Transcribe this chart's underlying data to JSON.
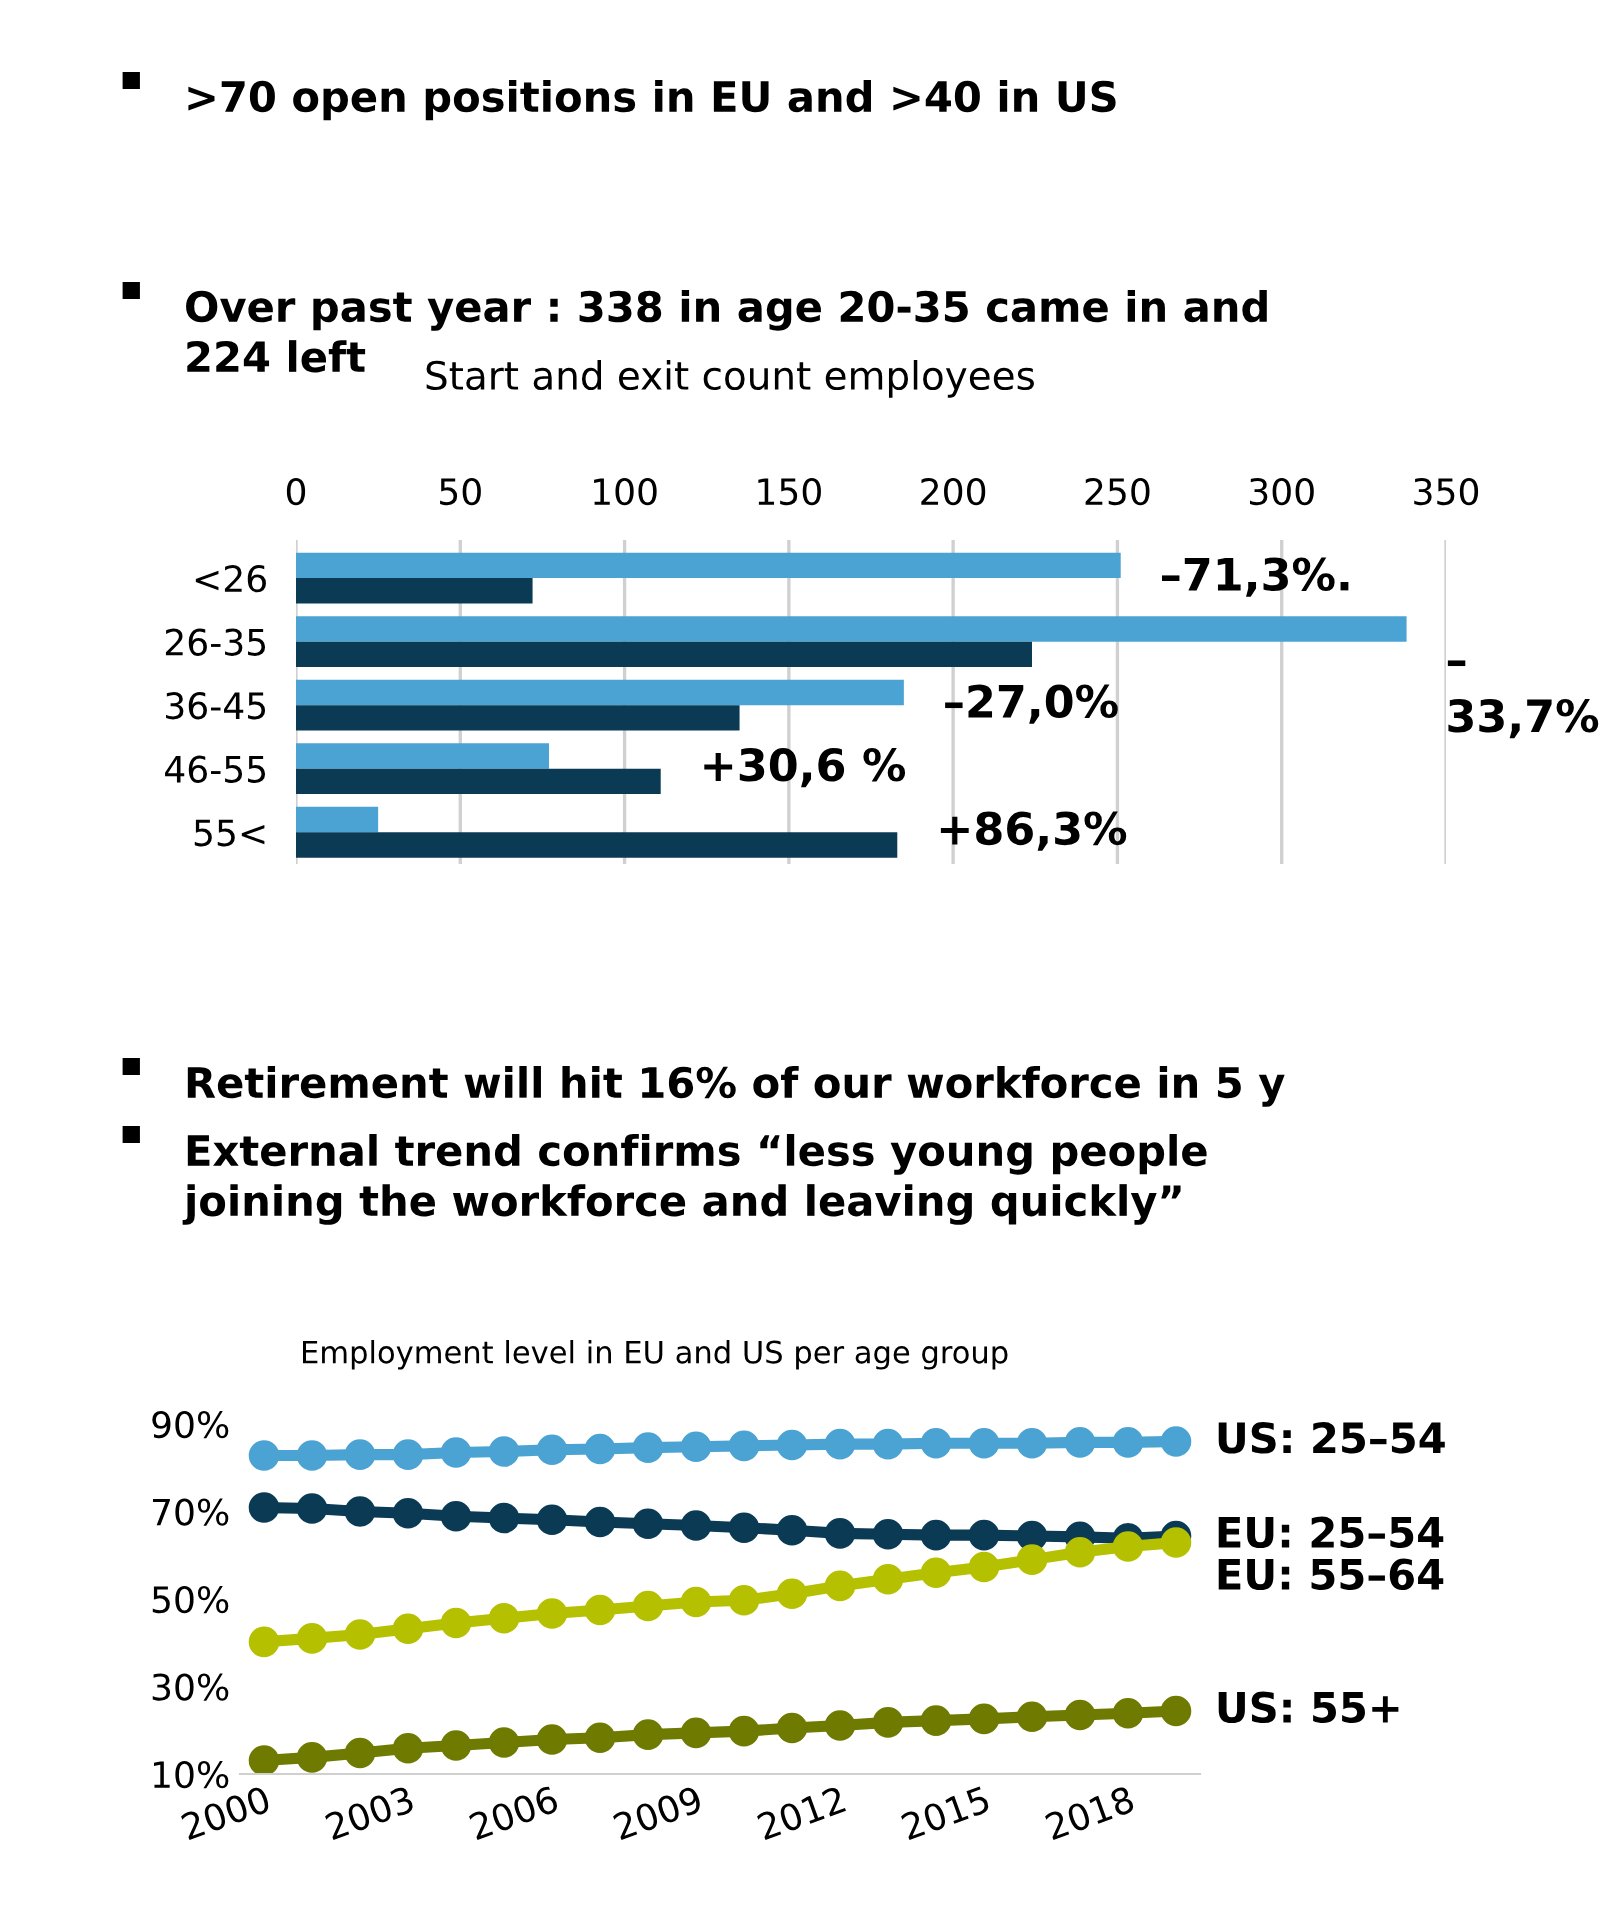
{
  "chart_data": [
    {
      "type": "bar",
      "orientation": "horizontal",
      "title": "Start and exit count employees",
      "categories": [
        "<26",
        "26-35",
        "36-45",
        "46-55",
        "55<"
      ],
      "series": [
        {
          "color": "#4ba3d3",
          "values": [
            251,
            338,
            185,
            77,
            25
          ]
        },
        {
          "color": "#0b3a55",
          "values": [
            72,
            224,
            135,
            111,
            183
          ]
        }
      ],
      "xlim": [
        0,
        350
      ],
      "xticks": [
        0,
        50,
        100,
        150,
        200,
        250,
        300,
        350
      ],
      "grid": "x",
      "annotations": [
        ">70 open positions in EU and >40 in US",
        "Over past year : 338 in age 20-35 came in and\n224 left",
        {
          "text": "–71,3%.",
          "x": 251,
          "y": "<26"
        },
        {
          "text": "–\n33,7%",
          "x": 338,
          "y": "26-35"
        },
        {
          "text": "–27,0%",
          "x": 185,
          "y": "36-45"
        },
        {
          "text": "+30,6 %",
          "x": 111,
          "y": "46-55"
        },
        {
          "text": "+86,3%",
          "x": 183,
          "y": "55<"
        }
      ]
    },
    {
      "type": "line",
      "title": "Employment level in EU and US per age group",
      "x": [
        2000,
        2001,
        2002,
        2003,
        2004,
        2005,
        2006,
        2007,
        2008,
        2009,
        2010,
        2011,
        2012,
        2013,
        2014,
        2015,
        2016,
        2017,
        2018,
        2019
      ],
      "series": [
        {
          "name": "US: 25–54",
          "color": "#4ba3d3",
          "values": [
            82.8,
            82.8,
            83.0,
            83.0,
            83.5,
            83.7,
            84.1,
            84.3,
            84.6,
            84.8,
            85.0,
            85.2,
            85.4,
            85.4,
            85.6,
            85.6,
            85.6,
            85.8,
            85.8,
            86.0
          ]
        },
        {
          "name": "EU: 25–54",
          "color": "#0b3a55",
          "values": [
            70.9,
            70.7,
            70.0,
            69.6,
            68.9,
            68.5,
            68.1,
            67.6,
            67.2,
            66.8,
            66.3,
            65.7,
            65.0,
            64.8,
            64.6,
            64.6,
            64.4,
            64.2,
            63.9,
            64.4
          ]
        },
        {
          "name": "EU: 55–64",
          "color": "#b5c100",
          "values": [
            40.2,
            41.0,
            41.9,
            43.2,
            44.5,
            45.6,
            46.7,
            47.5,
            48.4,
            49.3,
            49.7,
            51.2,
            53.0,
            54.5,
            56.0,
            57.3,
            59.0,
            60.7,
            62.0,
            62.9
          ]
        },
        {
          "name": "US: 55+",
          "color": "#6e7a00",
          "values": [
            13.1,
            13.8,
            14.8,
            15.9,
            16.5,
            17.2,
            17.9,
            18.3,
            19.0,
            19.4,
            19.8,
            20.5,
            21.1,
            21.8,
            22.2,
            22.6,
            23.1,
            23.5,
            23.9,
            24.4
          ]
        }
      ],
      "xlim": [
        1999.5,
        2019.5
      ],
      "xticks": [
        2000,
        2003,
        2006,
        2009,
        2012,
        2015,
        2018
      ],
      "ylim": [
        10,
        90
      ],
      "yticks": [
        {
          "value": 10,
          "label": "10%"
        },
        {
          "value": 30,
          "label": "30%"
        },
        {
          "value": 50,
          "label": "50%"
        },
        {
          "value": 70,
          "label": "70%"
        },
        {
          "value": 90,
          "label": "90%"
        }
      ],
      "marker": "circle",
      "line_style": "solid",
      "grid": false,
      "legend": false,
      "annotations": [
        "Retirement will hit 16% of our workforce in 5 y",
        "External trend confirms “less young people\njoining the workforce and leaving quickly”"
      ]
    }
  ]
}
